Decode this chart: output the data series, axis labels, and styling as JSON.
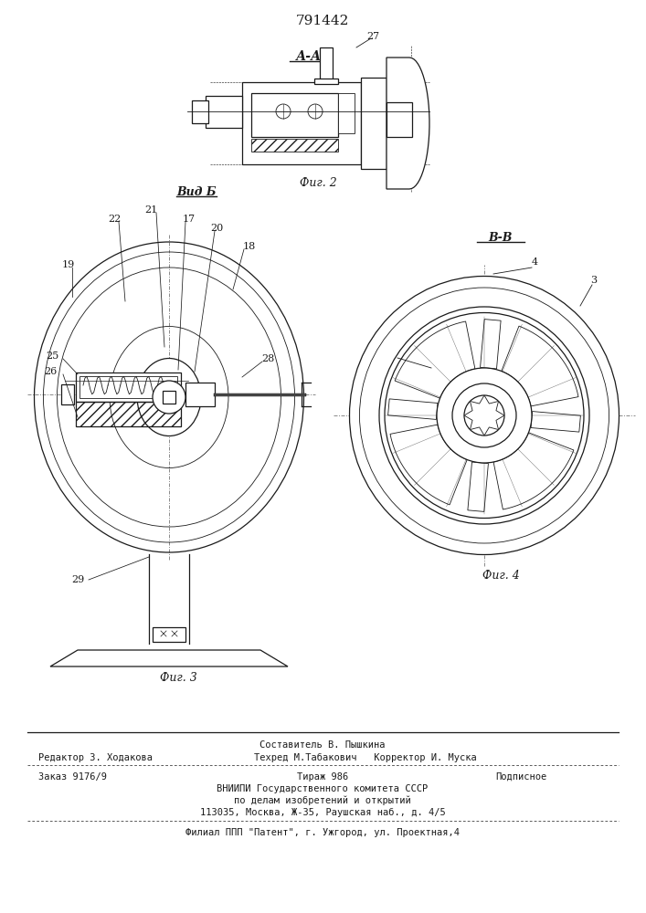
{
  "patent_number": "791442",
  "fig2_label": "А-А",
  "fig2_caption": "Фиг. 2",
  "fig3_label": "Вид Б",
  "fig3_caption": "Фиг. 3",
  "fig4_label": "В-В",
  "fig4_caption": "Фиг. 4",
  "bg_color": "#ffffff",
  "line_color": "#1a1a1a",
  "footer_line1_center_top": "Составитель В. Пышкина",
  "footer_line1_left": "Редактор З. Ходакова",
  "footer_line1_center": "Техред М.Табакович   Корректор И. Муска",
  "footer_line2_left": "Заказ 9176/9",
  "footer_line2_center": "Тираж 986",
  "footer_line2_right": "Подписное",
  "footer_line3": "ВНИИПИ Государственного комитета СССР",
  "footer_line4": "по делам изобретений и открытий",
  "footer_line5": "113035, Москва, Ж-35, Раушская наб., д. 4/5",
  "footer_line6": "Филиал ППП \"Патент\", г. Ужгород, ул. Проектная,4"
}
